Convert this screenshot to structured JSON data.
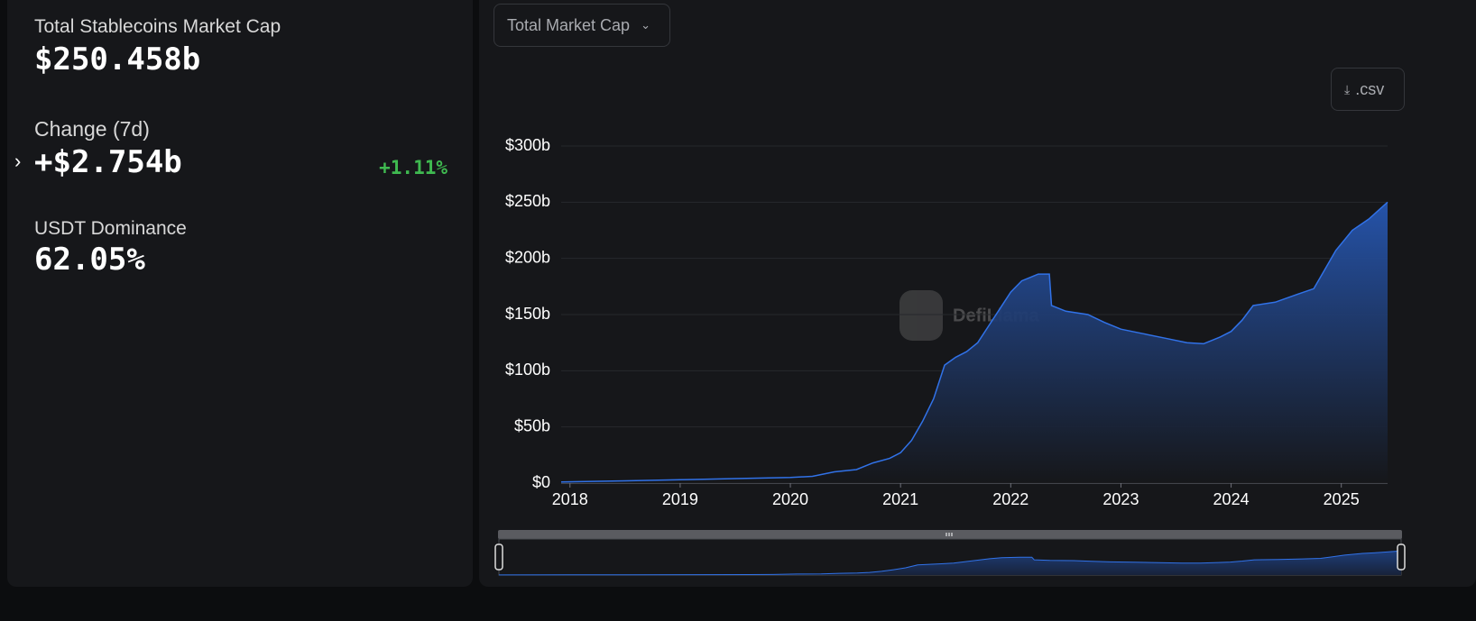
{
  "stats": [
    {
      "label": "Total Stablecoins Market Cap",
      "value": "$250.458b"
    },
    {
      "label": "Change (7d)",
      "value": "+$2.754b",
      "percent": "+1.11%"
    },
    {
      "label": "USDT Dominance",
      "value": "62.05%"
    }
  ],
  "dropdown": "Total Market Cap",
  "csv_button": ".csv",
  "watermark": "DefiLlama",
  "chart_data": {
    "type": "area",
    "color": "#3172e8",
    "x": [
      2017.92,
      2018.5,
      2019.0,
      2019.5,
      2020.0,
      2020.2,
      2020.4,
      2020.6,
      2020.75,
      2020.9,
      2021.0,
      2021.1,
      2021.2,
      2021.3,
      2021.4,
      2021.5,
      2021.6,
      2021.7,
      2021.8,
      2021.9,
      2022.0,
      2022.1,
      2022.25,
      2022.35,
      2022.37,
      2022.5,
      2022.7,
      2022.85,
      2023.0,
      2023.2,
      2023.4,
      2023.6,
      2023.75,
      2023.9,
      2024.0,
      2024.1,
      2024.2,
      2024.4,
      2024.6,
      2024.75,
      2024.85,
      2024.95,
      2025.1,
      2025.25,
      2025.42
    ],
    "values": [
      1,
      2,
      3,
      4,
      5,
      6,
      10,
      12,
      18,
      22,
      27,
      38,
      55,
      75,
      105,
      112,
      117,
      125,
      140,
      155,
      170,
      180,
      186,
      186,
      158,
      153,
      150,
      143,
      137,
      133,
      129,
      125,
      124,
      130,
      135,
      145,
      158,
      161,
      168,
      173,
      190,
      207,
      225,
      235,
      250
    ],
    "xlim": [
      2017.92,
      2025.42
    ],
    "ylim": [
      0,
      300
    ],
    "xticks": [
      2018,
      2019,
      2020,
      2021,
      2022,
      2023,
      2024,
      2025
    ],
    "yticks": [
      {
        "value": 0,
        "label": "$0"
      },
      {
        "value": 50,
        "label": "$50b"
      },
      {
        "value": 100,
        "label": "$100b"
      },
      {
        "value": 150,
        "label": "$150b"
      },
      {
        "value": 200,
        "label": "$200b"
      },
      {
        "value": 250,
        "label": "$250b"
      },
      {
        "value": 300,
        "label": "$300b"
      }
    ],
    "grid": true
  }
}
